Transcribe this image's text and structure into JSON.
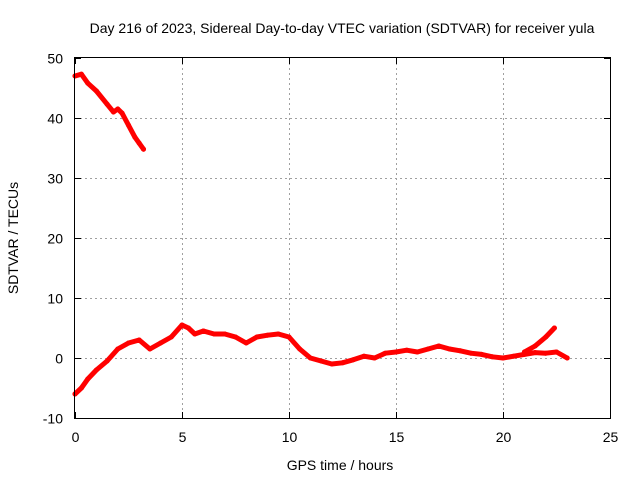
{
  "chart_data": {
    "type": "line",
    "title": "Day 216 of 2023, Sidereal Day-to-day VTEC variation (SDTVAR) for receiver yula",
    "xlabel": "GPS time / hours",
    "ylabel": "SDTVAR / TECUs",
    "xlim": [
      0,
      25
    ],
    "ylim": [
      -10,
      50
    ],
    "xticks": [
      0,
      5,
      10,
      15,
      20,
      25
    ],
    "yticks": [
      -10,
      0,
      10,
      20,
      30,
      40,
      50
    ],
    "xtick_labels": [
      "0",
      "5",
      "10",
      "15",
      "20",
      "25"
    ],
    "ytick_labels": [
      "-10",
      "0",
      "10",
      "20",
      "30",
      "40",
      "50"
    ],
    "grid": true,
    "legend": "none",
    "series_color": "#ff0000",
    "series": [
      {
        "name": "segment-1",
        "x": [
          0.0,
          0.3,
          0.6,
          1.0,
          1.5,
          1.8,
          2.0,
          2.2,
          2.5,
          2.8,
          3.0,
          3.2
        ],
        "y": [
          47.0,
          47.3,
          45.8,
          44.5,
          42.3,
          41.0,
          41.5,
          40.8,
          38.8,
          36.8,
          35.8,
          34.8
        ]
      },
      {
        "name": "segment-2",
        "x": [
          0.0,
          0.3,
          0.6,
          1.0,
          1.5,
          2.0,
          2.5,
          3.0,
          3.5,
          4.0,
          4.5,
          5.0,
          5.3,
          5.6,
          6.0,
          6.5,
          7.0,
          7.5,
          8.0,
          8.5,
          9.0,
          9.5,
          10.0,
          10.5,
          11.0,
          11.5,
          12.0,
          12.5,
          13.0,
          13.5,
          14.0,
          14.5,
          15.0,
          15.5,
          16.0,
          16.5,
          17.0,
          17.5,
          18.0,
          18.5,
          19.0,
          19.5,
          20.0,
          20.5,
          21.0,
          21.5,
          22.0,
          22.5,
          23.0
        ],
        "y": [
          -6.0,
          -5.0,
          -3.5,
          -2.0,
          -0.5,
          1.5,
          2.5,
          3.0,
          1.5,
          2.5,
          3.5,
          5.5,
          5.0,
          4.0,
          4.5,
          4.0,
          4.0,
          3.5,
          2.5,
          3.5,
          3.8,
          4.0,
          3.5,
          1.5,
          0.0,
          -0.5,
          -1.0,
          -0.8,
          -0.3,
          0.3,
          0.0,
          0.8,
          1.0,
          1.3,
          1.0,
          1.5,
          2.0,
          1.5,
          1.2,
          0.8,
          0.6,
          0.2,
          0.0,
          0.3,
          0.6,
          0.9,
          0.8,
          1.0,
          0.0
        ]
      },
      {
        "name": "segment-3",
        "x": [
          21.0,
          21.5,
          22.0,
          22.4
        ],
        "y": [
          1.0,
          2.0,
          3.5,
          5.0
        ]
      }
    ]
  }
}
